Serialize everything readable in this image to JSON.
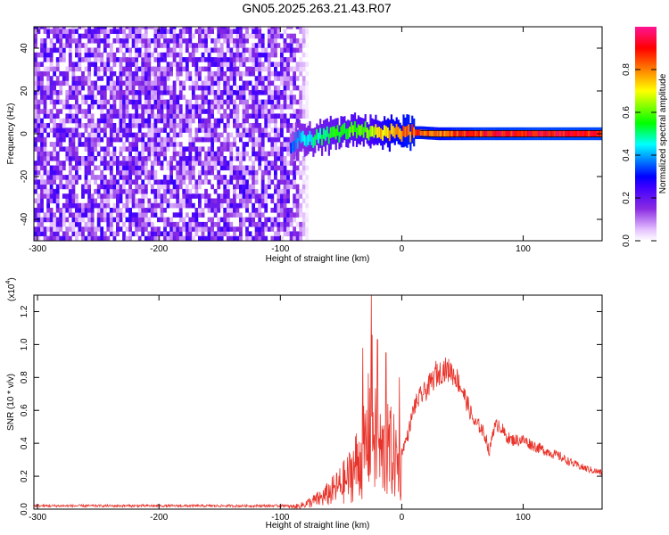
{
  "title": "GN05.2025.263.21.43.R07",
  "chart_data": [
    {
      "type": "heatmap",
      "xlabel": "Height of straight line (km)",
      "ylabel": "Frequency (Hz)",
      "xlim": [
        -303,
        165
      ],
      "ylim": [
        -50,
        50
      ],
      "xticks": [
        -300,
        -200,
        -100,
        0,
        100
      ],
      "xtick_labels": [
        "-300",
        "-200",
        "-100",
        "0",
        "100"
      ],
      "yticks": [
        -40,
        -20,
        0,
        20,
        40
      ],
      "ytick_labels": [
        "-40",
        "-20",
        "0",
        "20",
        "40"
      ],
      "colorbar": {
        "label": "Normalized spectral amplitude",
        "range": [
          0,
          1
        ],
        "ticks": [
          0.0,
          0.2,
          0.4,
          0.6,
          0.8
        ],
        "tick_labels": [
          "0.0",
          "0.2",
          "0.4",
          "0.6",
          "0.8"
        ],
        "colors": [
          "#ffffff",
          "#e6c3ff",
          "#8a2be2",
          "#3f00ff",
          "#0000ff",
          "#00ffff",
          "#00ff00",
          "#ffff00",
          "#ff8000",
          "#ff0000",
          "#ff1493"
        ]
      },
      "features": {
        "noise_region_x": [
          -303,
          -78
        ],
        "track_points": [
          {
            "x": -92,
            "y": -5,
            "amp": 0.35
          },
          {
            "x": -85,
            "y": -2,
            "amp": 0.45
          },
          {
            "x": -75,
            "y": -3,
            "amp": 0.5
          },
          {
            "x": -65,
            "y": -1,
            "amp": 0.55
          },
          {
            "x": -55,
            "y": 0,
            "amp": 0.6
          },
          {
            "x": -45,
            "y": 1,
            "amp": 0.62
          },
          {
            "x": -35,
            "y": 2,
            "amp": 0.65
          },
          {
            "x": -25,
            "y": 1,
            "amp": 0.7
          },
          {
            "x": -15,
            "y": 0.5,
            "amp": 0.8
          },
          {
            "x": -5,
            "y": 0.5,
            "amp": 0.85
          },
          {
            "x": 5,
            "y": 0.5,
            "amp": 0.9
          },
          {
            "x": 15,
            "y": 0.5,
            "amp": 0.9
          },
          {
            "x": 30,
            "y": 0,
            "amp": 0.88
          },
          {
            "x": 60,
            "y": 0,
            "amp": 0.95
          },
          {
            "x": 100,
            "y": 0,
            "amp": 0.97
          },
          {
            "x": 140,
            "y": 0,
            "amp": 0.98
          },
          {
            "x": 165,
            "y": 0,
            "amp": 0.98
          }
        ],
        "horizontal_line_y": [
          1.5,
          -1.5
        ]
      }
    },
    {
      "type": "line",
      "xlabel": "Height of straight line (km)",
      "ylabel": "SNR (10 * v/v)",
      "y_multiplier_label": "(x10",
      "y_multiplier_exp": "4",
      "y_multiplier_close": ")",
      "color": "#e8332a",
      "xlim": [
        -303,
        165
      ],
      "ylim": [
        0,
        1.3
      ],
      "xticks": [
        -300,
        -200,
        -100,
        0,
        100
      ],
      "xtick_labels": [
        "-300",
        "-200",
        "-100",
        "0",
        "100"
      ],
      "yticks": [
        0.0,
        0.2,
        0.4,
        0.6,
        0.8,
        1.0,
        1.2
      ],
      "ytick_labels": [
        "0.0",
        "0.2",
        "0.4",
        "0.6",
        "0.8",
        "1.0",
        "1.2"
      ],
      "series": [
        {
          "envelope_x": [
            -303,
            -100,
            -85,
            -75,
            -65,
            -55,
            -45,
            -40,
            -35,
            -30,
            -27,
            -25,
            -22,
            -20,
            -15,
            -10,
            -5,
            0,
            5,
            10,
            15,
            20,
            25,
            30,
            35,
            40,
            45,
            50,
            55,
            60,
            65,
            70,
            72,
            75,
            80,
            85,
            90,
            100,
            110,
            120,
            130,
            140,
            150,
            160,
            165
          ],
          "envelope_y": [
            0.02,
            0.02,
            0.03,
            0.07,
            0.12,
            0.2,
            0.3,
            0.4,
            0.5,
            0.6,
            0.8,
            1.05,
            0.7,
            0.6,
            0.55,
            0.6,
            0.5,
            0.35,
            0.45,
            0.62,
            0.68,
            0.72,
            0.78,
            0.82,
            0.85,
            0.84,
            0.8,
            0.72,
            0.62,
            0.52,
            0.5,
            0.42,
            0.33,
            0.48,
            0.52,
            0.45,
            0.42,
            0.42,
            0.38,
            0.35,
            0.32,
            0.28,
            0.25,
            0.23,
            0.22
          ],
          "spikes": [
            {
              "x": -25,
              "y": 1.3
            },
            {
              "x": -32,
              "y": 0.98
            },
            {
              "x": -20,
              "y": 1.03
            },
            {
              "x": -13,
              "y": 0.95
            },
            {
              "x": -2,
              "y": 0.8
            },
            {
              "x": 28,
              "y": 0.9
            },
            {
              "x": 40,
              "y": 0.88
            }
          ]
        }
      ]
    }
  ]
}
